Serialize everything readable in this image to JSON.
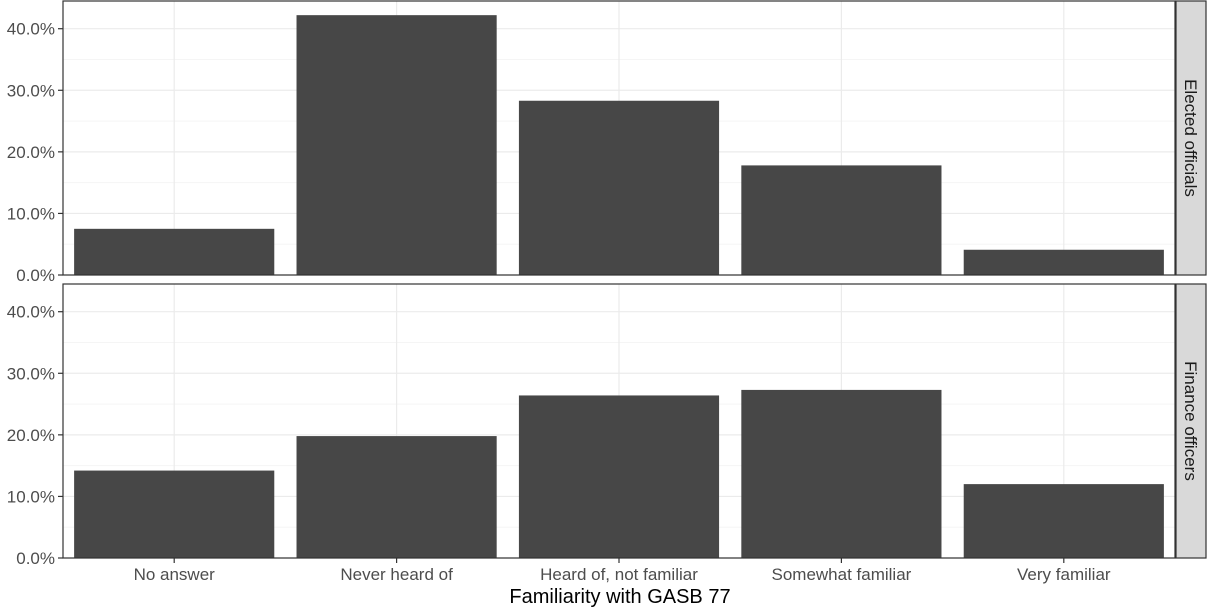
{
  "chart_data": {
    "type": "bar",
    "facet_layout": "rows",
    "categories": [
      "No answer",
      "Never heard of",
      "Heard of, not familiar",
      "Somewhat familiar",
      "Very familiar"
    ],
    "xlabel": "Familiarity with GASB 77",
    "ylabel": "",
    "ylim": [
      0,
      44.5
    ],
    "y_ticks": [
      "0.0%",
      "10.0%",
      "20.0%",
      "30.0%",
      "40.0%"
    ],
    "y_tick_values": [
      0,
      10,
      20,
      30,
      40
    ],
    "grid": true,
    "bar_color": "#474747",
    "panels": [
      {
        "strip_label": "Elected officials",
        "values": [
          7.5,
          42.2,
          28.3,
          17.8,
          4.1
        ]
      },
      {
        "strip_label": "Finance officers",
        "values": [
          14.2,
          19.8,
          26.4,
          27.3,
          12.0
        ]
      }
    ]
  },
  "colors": {
    "panel_border": "#333333",
    "strip_fill": "#d9d9d9",
    "grid_major": "#ebebeb",
    "grid_minor": "#f5f5f5",
    "text": "#4d4d4d",
    "axis_title": "#000000"
  }
}
